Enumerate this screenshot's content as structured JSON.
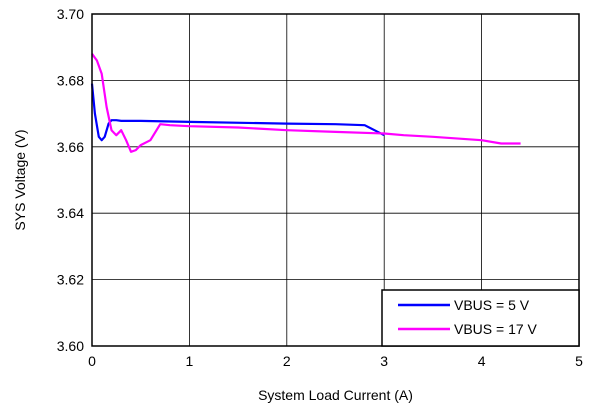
{
  "chart_data": {
    "type": "line",
    "title": "",
    "xlabel": "System Load Current (A)",
    "ylabel": "SYS Voltage (V)",
    "xlim": [
      0,
      5
    ],
    "ylim": [
      3.6,
      3.7
    ],
    "x_ticks": [
      "0",
      "1",
      "2",
      "3",
      "4",
      "5"
    ],
    "y_ticks": [
      "3.60",
      "3.62",
      "3.64",
      "3.66",
      "3.68",
      "3.70"
    ],
    "grid": true,
    "legend_position": "bottom-right",
    "series": [
      {
        "name": "VBUS = 5 V",
        "color": "#0000ff",
        "x": [
          0.0,
          0.03,
          0.07,
          0.1,
          0.13,
          0.17,
          0.2,
          0.25,
          0.3,
          0.5,
          1.0,
          2.0,
          2.5,
          2.8,
          2.9,
          3.0
        ],
        "y": [
          3.679,
          3.67,
          3.663,
          3.662,
          3.663,
          3.667,
          3.668,
          3.668,
          3.6678,
          3.6678,
          3.6675,
          3.667,
          3.6668,
          3.6665,
          3.665,
          3.6635
        ]
      },
      {
        "name": "VBUS = 17 V",
        "color": "#ff00ff",
        "x": [
          0.0,
          0.05,
          0.1,
          0.15,
          0.2,
          0.25,
          0.3,
          0.35,
          0.4,
          0.45,
          0.5,
          0.6,
          0.7,
          0.8,
          1.0,
          1.5,
          2.0,
          2.5,
          3.0,
          3.2,
          3.5,
          4.0,
          4.2,
          4.4
        ],
        "y": [
          3.688,
          3.686,
          3.682,
          3.672,
          3.665,
          3.6635,
          3.665,
          3.662,
          3.6585,
          3.659,
          3.6605,
          3.662,
          3.6668,
          3.6665,
          3.6662,
          3.6658,
          3.665,
          3.6645,
          3.664,
          3.6635,
          3.663,
          3.662,
          3.661,
          3.661
        ]
      }
    ]
  }
}
